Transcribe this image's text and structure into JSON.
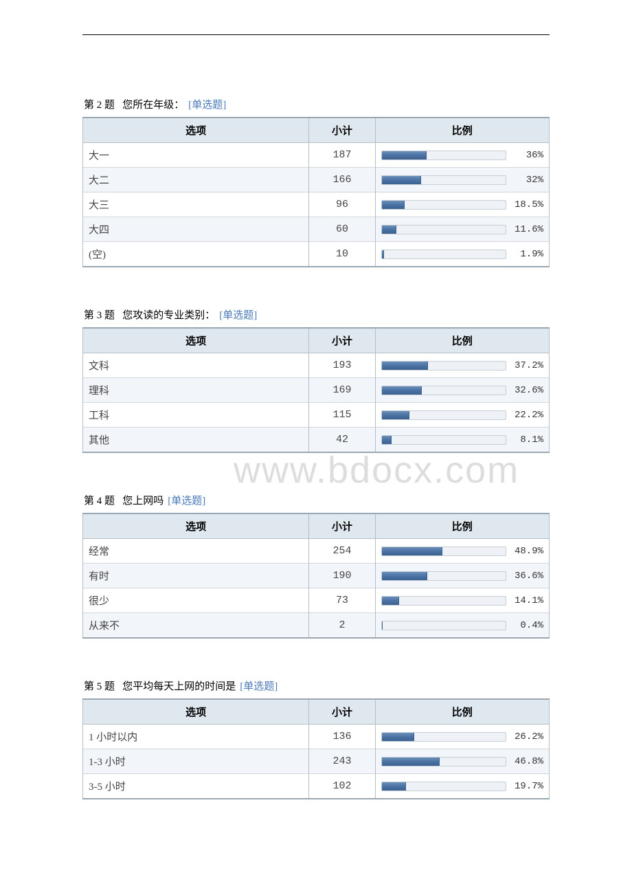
{
  "watermark": "www.bdocx.com",
  "headers": {
    "option": "选项",
    "count": "小计",
    "ratio": "比例"
  },
  "tag_label": "[单选题]",
  "questions": [
    {
      "num": "第 2 题",
      "title": "您所在年级：",
      "rows": [
        {
          "option": "大一",
          "count": "187",
          "pct": 36,
          "pct_label": "36%"
        },
        {
          "option": "大二",
          "count": "166",
          "pct": 32,
          "pct_label": "32%"
        },
        {
          "option": "大三",
          "count": "96",
          "pct": 18.5,
          "pct_label": "18.5%"
        },
        {
          "option": "大四",
          "count": "60",
          "pct": 11.6,
          "pct_label": "11.6%"
        },
        {
          "option": "(空)",
          "count": "10",
          "pct": 1.9,
          "pct_label": "1.9%"
        }
      ]
    },
    {
      "num": "第 3 题",
      "title": "您攻读的专业类别：",
      "rows": [
        {
          "option": "文科",
          "count": "193",
          "pct": 37.2,
          "pct_label": "37.2%"
        },
        {
          "option": "理科",
          "count": "169",
          "pct": 32.6,
          "pct_label": "32.6%"
        },
        {
          "option": "工科",
          "count": "115",
          "pct": 22.2,
          "pct_label": "22.2%"
        },
        {
          "option": "其他",
          "count": "42",
          "pct": 8.1,
          "pct_label": "8.1%"
        }
      ]
    },
    {
      "num": "第 4 题",
      "title": "您上网吗",
      "rows": [
        {
          "option": "经常",
          "count": "254",
          "pct": 48.9,
          "pct_label": "48.9%"
        },
        {
          "option": "有时",
          "count": "190",
          "pct": 36.6,
          "pct_label": "36.6%"
        },
        {
          "option": "很少",
          "count": "73",
          "pct": 14.1,
          "pct_label": "14.1%"
        },
        {
          "option": "从来不",
          "count": "2",
          "pct": 0.4,
          "pct_label": "0.4%"
        }
      ]
    },
    {
      "num": "第 5 题",
      "title": "您平均每天上网的时间是",
      "rows": [
        {
          "option": "1 小时以内",
          "count": "136",
          "pct": 26.2,
          "pct_label": "26.2%"
        },
        {
          "option": "1-3 小时",
          "count": "243",
          "pct": 46.8,
          "pct_label": "46.8%"
        },
        {
          "option": "3-5 小时",
          "count": "102",
          "pct": 19.7,
          "pct_label": "19.7%"
        }
      ]
    }
  ],
  "style": {
    "bar_fill_color": "#4a72a4",
    "bar_track_color": "#eef2f6",
    "bar_border_color": "#c7cfd6",
    "header_bg": "#dfe8ef",
    "alt_row_bg": "#f2f6fa",
    "table_border": "#9aa7b0",
    "cell_border": "#b5bec5",
    "tag_color": "#4a7ab8"
  }
}
